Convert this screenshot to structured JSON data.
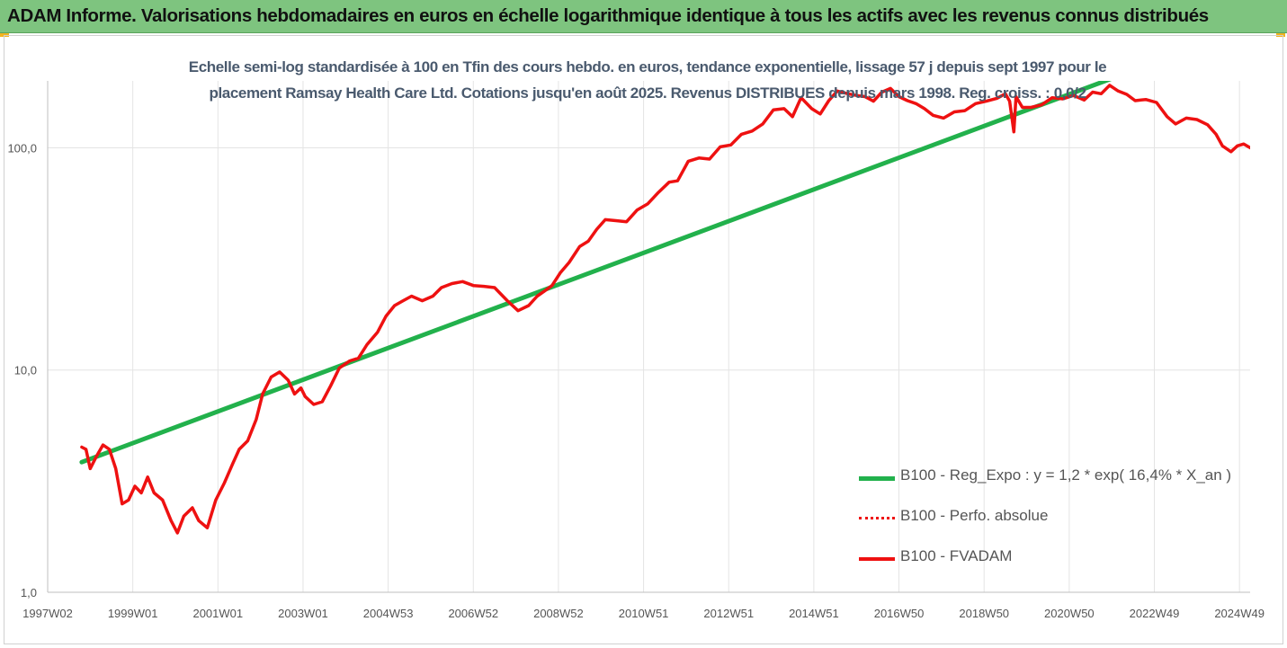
{
  "header": {
    "title": "ADAM Informe. Valorisations hebdomadaires en euros en échelle logarithmique identique à tous les actifs avec les revenus connus distribués"
  },
  "colors": {
    "banner": "#7ec47f",
    "regression": "#22b14c",
    "series": "#ee1111",
    "grid": "#e4e4e4",
    "axis_text": "#555555"
  },
  "chart_data": {
    "type": "line",
    "title_lines": [
      "Echelle semi-log standardisée à 100 en Tfin des cours hebdo. en euros, tendance exponentielle, lissage 57 j depuis sept 1997 pour le",
      "placement Ramsay Health Care Ltd. Cotations jusqu'en août 2025. Revenus DISTRIBUES depuis mars 1998. Reg. croiss. : 0,0/2"
    ],
    "y_scale": "log",
    "ylim": [
      1,
      200
    ],
    "y_ticks": [
      {
        "value": 1,
        "label": "1,0"
      },
      {
        "value": 10,
        "label": "10,0"
      },
      {
        "value": 100,
        "label": "100,0"
      }
    ],
    "xlim": [
      1997.5,
      2025.75
    ],
    "x_ticks": [
      {
        "value": 1997.5,
        "label": "1997W02"
      },
      {
        "value": 1999.5,
        "label": "1999W01"
      },
      {
        "value": 2001.5,
        "label": "2001W01"
      },
      {
        "value": 2003.5,
        "label": "2003W01"
      },
      {
        "value": 2005.5,
        "label": "2004W53"
      },
      {
        "value": 2007.5,
        "label": "2006W52"
      },
      {
        "value": 2009.5,
        "label": "2008W52"
      },
      {
        "value": 2011.5,
        "label": "2010W51"
      },
      {
        "value": 2013.5,
        "label": "2012W51"
      },
      {
        "value": 2015.5,
        "label": "2014W51"
      },
      {
        "value": 2017.5,
        "label": "2016W50"
      },
      {
        "value": 2019.5,
        "label": "2018W50"
      },
      {
        "value": 2021.5,
        "label": "2020W50"
      },
      {
        "value": 2023.5,
        "label": "2022W49"
      },
      {
        "value": 2025.5,
        "label": "2024W49"
      }
    ],
    "grid": true,
    "legend_position": "right",
    "series": [
      {
        "name": "B100 - Reg_Expo : y = 1,2 * exp( 16,4% *  X_an )",
        "style": "solid",
        "color": "#22b14c",
        "x": [
          1998.3,
          2022.5
        ],
        "y": [
          3.85,
          205
        ]
      },
      {
        "name": "B100 - Perfo. absolue",
        "style": "dotted",
        "color": "#ee1111",
        "x": [],
        "y": []
      },
      {
        "name": "B100 - FVADAM",
        "style": "solid",
        "color": "#ee1111",
        "x": [
          1998.3,
          1998.4,
          1998.5,
          1998.65,
          1998.8,
          1998.95,
          1999.1,
          1999.25,
          1999.4,
          1999.55,
          1999.7,
          1999.85,
          2000.0,
          2000.2,
          2000.4,
          2000.55,
          2000.7,
          2000.9,
          2001.05,
          2001.25,
          2001.45,
          2001.65,
          2001.85,
          2002.0,
          2002.2,
          2002.4,
          2002.55,
          2002.75,
          2002.95,
          2003.15,
          2003.3,
          2003.45,
          2003.55,
          2003.75,
          2003.95,
          2004.15,
          2004.35,
          2004.6,
          2004.8,
          2005.0,
          2005.25,
          2005.45,
          2005.65,
          2005.85,
          2006.05,
          2006.3,
          2006.55,
          2006.75,
          2007.0,
          2007.25,
          2007.5,
          2007.75,
          2008.0,
          2008.3,
          2008.55,
          2008.8,
          2009.0,
          2009.15,
          2009.35,
          2009.55,
          2009.75,
          2010.0,
          2010.2,
          2010.4,
          2010.6,
          2010.85,
          2011.1,
          2011.35,
          2011.6,
          2011.85,
          2012.1,
          2012.3,
          2012.55,
          2012.8,
          2013.05,
          2013.3,
          2013.55,
          2013.8,
          2014.05,
          2014.3,
          2014.55,
          2014.8,
          2015.0,
          2015.2,
          2015.45,
          2015.65,
          2015.85,
          2016.05,
          2016.3,
          2016.5,
          2016.7,
          2016.9,
          2017.1,
          2017.3,
          2017.5,
          2017.7,
          2017.9,
          2018.1,
          2018.3,
          2018.55,
          2018.8,
          2019.05,
          2019.3,
          2019.55,
          2019.8,
          2020.0,
          2020.1,
          2020.2,
          2020.25,
          2020.4,
          2020.6,
          2020.85,
          2021.1,
          2021.35,
          2021.6,
          2021.85,
          2022.05,
          2022.25,
          2022.45,
          2022.65,
          2022.85,
          2023.05,
          2023.3,
          2023.55,
          2023.8,
          2024.0,
          2024.25,
          2024.5,
          2024.75,
          2024.95,
          2025.1,
          2025.3,
          2025.45,
          2025.6,
          2025.75
        ],
        "y": [
          4.5,
          4.4,
          3.6,
          4.1,
          4.6,
          4.4,
          3.6,
          2.5,
          2.6,
          3.0,
          2.8,
          3.3,
          2.8,
          2.6,
          2.1,
          1.85,
          2.2,
          2.4,
          2.1,
          1.95,
          2.6,
          3.1,
          3.8,
          4.4,
          4.8,
          6.0,
          7.8,
          9.3,
          9.8,
          9.0,
          7.8,
          8.3,
          7.6,
          7.0,
          7.2,
          8.5,
          10.2,
          11.0,
          11.3,
          13.0,
          14.8,
          17.5,
          19.5,
          20.5,
          21.5,
          20.5,
          21.5,
          23.5,
          24.5,
          25.0,
          24.0,
          23.8,
          23.5,
          20.5,
          18.5,
          19.5,
          21.5,
          22.5,
          24.0,
          27.5,
          30.5,
          36.0,
          38.0,
          43.0,
          47.5,
          47.0,
          46.5,
          52.5,
          56.0,
          63.0,
          70.0,
          71.0,
          87.0,
          90.0,
          89.0,
          101,
          103,
          115,
          119,
          128,
          148,
          150,
          138,
          168,
          150,
          142,
          163,
          180,
          175,
          172,
          170,
          162,
          178,
          185,
          170,
          163,
          158,
          150,
          140,
          136,
          145,
          147,
          158,
          162,
          167,
          175,
          162,
          118,
          170,
          152,
          152,
          156,
          168,
          166,
          172,
          164,
          178,
          175,
          191,
          180,
          174,
          163,
          165,
          160,
          138,
          128,
          136,
          134,
          127,
          115,
          102,
          96,
          102,
          104,
          100
        ]
      }
    ]
  }
}
